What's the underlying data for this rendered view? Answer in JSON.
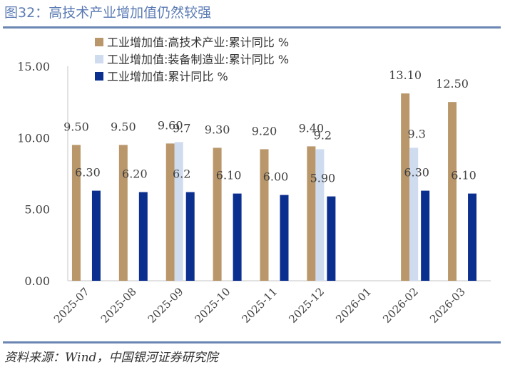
{
  "header": {
    "title": "图32：高技术产业增加值仍然较强"
  },
  "footer": {
    "source": "资料来源：Wind，中国银河证券研究院"
  },
  "chart_data": {
    "type": "bar",
    "title": "图32：高技术产业增加值仍然较强",
    "xlabel": "",
    "ylabel": "",
    "ylim": [
      0,
      15
    ],
    "yticks": [
      0,
      5,
      10,
      15
    ],
    "ytick_labels": [
      "0.00",
      "5.00",
      "10.00",
      "15.00"
    ],
    "grid": false,
    "legend_position": "top-left",
    "categories": [
      "2025-07",
      "2025-08",
      "2025-09",
      "2025-10",
      "2025-11",
      "2025-12",
      "2026-01",
      "2026-02",
      "2026-03"
    ],
    "series": [
      {
        "name": "工业增加值:高技术产业:累计同比 %",
        "color": "#b9976a",
        "values": [
          9.5,
          9.5,
          9.6,
          9.3,
          9.2,
          9.4,
          null,
          13.1,
          12.5
        ],
        "labels": [
          "9.50",
          "9.50",
          "9.60",
          "9.30",
          "9.20",
          "9.40",
          "",
          "13.10",
          "12.50"
        ]
      },
      {
        "name": "工业增加值:装备制造业:累计同比 %",
        "color": "#cfdcf0",
        "values": [
          null,
          null,
          9.7,
          null,
          null,
          9.2,
          null,
          9.3,
          null
        ],
        "labels": [
          "",
          "",
          "9.7",
          "",
          "",
          "9.2",
          "",
          "9.3",
          ""
        ]
      },
      {
        "name": "工业增加值:累计同比 %",
        "color": "#0b2f8f",
        "values": [
          6.3,
          6.2,
          6.2,
          6.1,
          6.0,
          5.9,
          null,
          6.3,
          6.1
        ],
        "labels": [
          "6.30",
          "6.20",
          "6.2",
          "6.10",
          "6.00",
          "5.90",
          "",
          "6.30",
          "6.10"
        ]
      }
    ]
  }
}
